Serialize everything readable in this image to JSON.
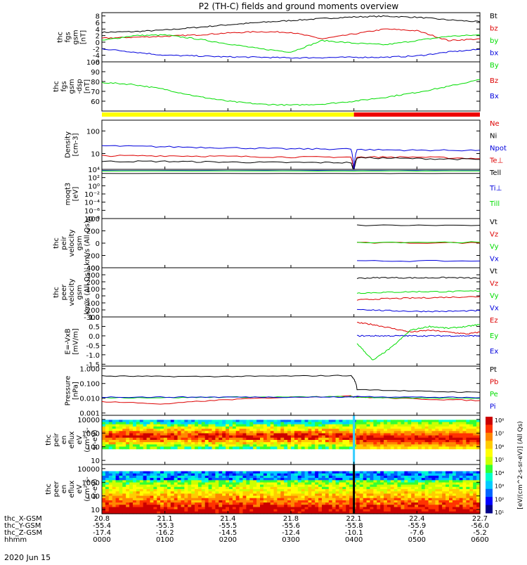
{
  "title": "P2 (TH-C) fields and ground moments overview",
  "date_label": "2020 Jun 15",
  "footer": {
    "row_labels": [
      "thc_X-GSM",
      "thc_Y-GSM",
      "thc_Z-GSM",
      "hhmm"
    ],
    "columns": [
      {
        "x": "20.8",
        "y": "-55.4",
        "z": "-17.4",
        "hhmm": "0000"
      },
      {
        "x": "21.1",
        "y": "-55.3",
        "z": "-16.2",
        "hhmm": "0100"
      },
      {
        "x": "21.4",
        "y": "-55.5",
        "z": "-14.5",
        "hhmm": "0200"
      },
      {
        "x": "21.8",
        "y": "-55.6",
        "z": "-12.4",
        "hhmm": "0300"
      },
      {
        "x": "22.1",
        "y": "-55.8",
        "z": "-10.1",
        "hhmm": "0400"
      },
      {
        "x": "22.4",
        "y": "-55.9",
        "z": "-7.6",
        "hhmm": "0500"
      },
      {
        "x": "22.7",
        "y": "-56.0",
        "z": "-5.2",
        "hhmm": "0600"
      }
    ]
  },
  "colors": {
    "black": "#000000",
    "red": "#dd0000",
    "green": "#00dd00",
    "blue": "#0000dd",
    "yellow": "#ffff00",
    "mode_red": "#ee0000"
  },
  "chart_data": [
    {
      "type": "line",
      "ylabel_lines": [
        "thc",
        "fgs",
        "gsm",
        "[nT]"
      ],
      "ylim": [
        -6,
        9
      ],
      "yticks": [
        "8",
        "6",
        "4",
        "2",
        "0",
        "-2",
        "-4",
        "-6"
      ],
      "x_hours": [
        0,
        0.5,
        1,
        1.5,
        2,
        2.5,
        3,
        3.5,
        4,
        4.5,
        5,
        5.5,
        6
      ],
      "series": [
        {
          "name": "Bt",
          "color": "#000000",
          "values": [
            3.0,
            3.2,
            3.7,
            4.5,
            5.3,
            6.0,
            6.6,
            7.2,
            7.7,
            7.9,
            7.6,
            6.8,
            6.2
          ]
        },
        {
          "name": "bz",
          "color": "#dd0000",
          "values": [
            1.2,
            1.5,
            1.8,
            2.2,
            2.8,
            3.2,
            3.0,
            1.0,
            2.5,
            4.0,
            3.5,
            0.5,
            1.0
          ]
        },
        {
          "name": "by",
          "color": "#00dd00",
          "values": [
            0.5,
            2.0,
            2.2,
            1.0,
            -0.5,
            -2.0,
            -3.0,
            0.5,
            -0.3,
            -0.8,
            0.5,
            1.8,
            2.2
          ]
        },
        {
          "name": "bx",
          "color": "#0000dd",
          "values": [
            -2.0,
            -3.0,
            -4.0,
            -4.2,
            -4.5,
            -4.6,
            -4.8,
            -4.7,
            -4.6,
            -4.6,
            -4.2,
            -3.0,
            -2.2
          ]
        }
      ]
    },
    {
      "type": "line",
      "ylabel_lines": [
        "thc",
        "fgs",
        "gsm",
        "-dsp",
        "[nT]"
      ],
      "ylim": [
        50,
        100
      ],
      "yticks": [
        "100",
        "90",
        "80",
        "70",
        "60"
      ],
      "x_hours": [
        0,
        0.5,
        1,
        1.5,
        2,
        2.5,
        3,
        3.5,
        4,
        4.5,
        5,
        5.5,
        6
      ],
      "series": [
        {
          "name": "By",
          "color": "#00dd00",
          "values": [
            79,
            77,
            72,
            65,
            60,
            57,
            56,
            57,
            60,
            64,
            69,
            75,
            82
          ]
        }
      ],
      "legend_extra": [
        {
          "name": "Bz",
          "color": "#dd0000"
        },
        {
          "name": "Bx",
          "color": "#0000dd"
        }
      ]
    },
    {
      "type": "line",
      "ylabel_lines": [
        "Density",
        "[cm-3]"
      ],
      "yscale": "log",
      "ylim": [
        2,
        300
      ],
      "yticks": [
        "100",
        "10"
      ],
      "x_hours": [
        0,
        1,
        2,
        3,
        3.95,
        4.0,
        4.05,
        5,
        6
      ],
      "series": [
        {
          "name": "Ne",
          "color": "#dd0000",
          "values": [
            8,
            8,
            7.5,
            7,
            7,
            1.5,
            7,
            7,
            6
          ]
        },
        {
          "name": "Ni",
          "color": "#000000",
          "values": [
            4.5,
            4.5,
            4.2,
            4,
            4,
            1.5,
            6.5,
            6,
            5.5
          ]
        },
        {
          "name": "Npot",
          "color": "#0000dd",
          "values": [
            22,
            20,
            18,
            16,
            16,
            1.5,
            15,
            14,
            14
          ]
        },
        {
          "name": "Te⊥",
          "color": "#dd0000",
          "values": []
        }
      ]
    },
    {
      "type": "line",
      "ylabel_lines": [
        "moqt3",
        "[eV]"
      ],
      "yscale": "log",
      "ylim": [
        1e-08,
        10000.0
      ],
      "yticks": [
        "10⁴",
        "10²",
        "10⁰",
        "10⁻²",
        "10⁻⁴",
        "10⁻⁶",
        "10⁻⁸"
      ],
      "x_hours": [
        0,
        4,
        6
      ],
      "series": [
        {
          "name": "Tell",
          "color": "#000000",
          "values": [
            1000,
            1000,
            1000
          ]
        },
        {
          "name": "Ti⊥",
          "color": "#0000dd",
          "values": [
            5000,
            5000,
            5000
          ]
        },
        {
          "name": "Till",
          "color": "#00dd00",
          "values": [
            4000,
            4000,
            4000
          ]
        }
      ]
    },
    {
      "type": "line",
      "ylabel_lines": [
        "thc",
        "peir",
        "velocity",
        "gsm",
        "km/s (All Qs)"
      ],
      "ylim": [
        -400,
        400
      ],
      "yticks": [
        "400",
        "200",
        "0",
        "-200",
        "-400"
      ],
      "x_hours": [
        4.05,
        6
      ],
      "series": [
        {
          "name": "Vt",
          "color": "#000000",
          "values": [
            290,
            290
          ]
        },
        {
          "name": "Vz",
          "color": "#dd0000",
          "values": [
            5,
            5
          ]
        },
        {
          "name": "Vy",
          "color": "#00dd00",
          "values": [
            15,
            15
          ]
        },
        {
          "name": "Vx",
          "color": "#0000dd",
          "values": [
            -290,
            -290
          ]
        }
      ]
    },
    {
      "type": "line",
      "ylabel_lines": [
        "thc",
        "peer",
        "velocity",
        "gsm",
        "km/s (All Qs)"
      ],
      "ylim": [
        -300,
        400
      ],
      "yticks": [
        "400",
        "300",
        "200",
        "100",
        "0",
        "-100",
        "-200",
        "-300"
      ],
      "x_hours": [
        4.05,
        4.5,
        5,
        5.5,
        6
      ],
      "series": [
        {
          "name": "Vt",
          "color": "#000000",
          "values": [
            250,
            260,
            255,
            260,
            250
          ]
        },
        {
          "name": "Vz",
          "color": "#dd0000",
          "values": [
            -60,
            -40,
            -30,
            -20,
            -10
          ]
        },
        {
          "name": "Vy",
          "color": "#00dd00",
          "values": [
            40,
            50,
            60,
            60,
            70
          ]
        },
        {
          "name": "Vx",
          "color": "#0000dd",
          "values": [
            -190,
            -210,
            -220,
            -220,
            -210
          ]
        }
      ]
    },
    {
      "type": "line",
      "ylabel_lines": [
        "E=-VxB",
        "[mV/m]"
      ],
      "ylim": [
        -1.6,
        1.0
      ],
      "yticks": [
        "1.0",
        "0.5",
        "0.0",
        "-0.5",
        "-1.0",
        "-1.5"
      ],
      "x_hours": [
        4.05,
        4.3,
        4.6,
        4.9,
        5.2,
        5.5,
        5.8,
        6
      ],
      "series": [
        {
          "name": "Ez",
          "color": "#dd0000",
          "values": [
            0.7,
            0.6,
            0.4,
            0.2,
            0.3,
            0.2,
            0.1,
            0.2
          ]
        },
        {
          "name": "Ey",
          "color": "#00dd00",
          "values": [
            -0.4,
            -1.3,
            -0.6,
            0.3,
            0.5,
            0.4,
            0.5,
            0.6
          ]
        },
        {
          "name": "Ex",
          "color": "#0000dd",
          "values": [
            0.0,
            0.0,
            0.0,
            0.0,
            0.0,
            0.0,
            0.0,
            0.0
          ]
        }
      ]
    },
    {
      "type": "line",
      "ylabel_lines": [
        "Pressure",
        "[nPa]"
      ],
      "yscale": "log",
      "ylim": [
        0.0007,
        1.5
      ],
      "yticks": [
        "1.000",
        "0.100",
        "0.010",
        "0.001"
      ],
      "x_hours": [
        0,
        1,
        2,
        3,
        3.95,
        4.05,
        5,
        6
      ],
      "series": [
        {
          "name": "Pt",
          "color": "#000000",
          "values": [
            0.32,
            0.3,
            0.3,
            0.32,
            0.35,
            0.04,
            0.03,
            0.025
          ]
        },
        {
          "name": "Pb",
          "color": "#dd0000",
          "values": [
            0.006,
            0.004,
            0.008,
            0.012,
            0.014,
            0.012,
            0.009,
            0.007
          ]
        },
        {
          "name": "Pe",
          "color": "#00dd00",
          "values": [
            0.011,
            0.011,
            0.012,
            0.012,
            0.013,
            0.012,
            0.01,
            0.01
          ]
        },
        {
          "name": "Pi",
          "color": "#0000dd",
          "values": [
            0.012,
            0.012,
            0.012,
            0.012,
            0.012,
            0.013,
            0.012,
            0.011
          ]
        }
      ]
    },
    {
      "type": "heatmap",
      "ylabel_lines": [
        "thc",
        "peir",
        "en",
        "eflux",
        "eV",
        "(cm²-s-",
        "sr-eV)"
      ],
      "yscale": "log",
      "ylim": [
        5,
        20000
      ],
      "yticks": [
        "10000",
        "1000",
        "100",
        "10"
      ]
    },
    {
      "type": "heatmap",
      "ylabel_lines": [
        "thc",
        "peer",
        "en",
        "eflux",
        "eV",
        "(cm²-s-",
        "sr-eV)"
      ],
      "yscale": "log",
      "ylim": [
        5,
        20000
      ],
      "yticks": [
        "10000",
        "1000",
        "100",
        "10"
      ]
    }
  ],
  "colorbar": {
    "label": "[eV/(cm^2-s-sr-eV)] (All Qs)",
    "ticks": [
      "10⁸",
      "10⁷",
      "10⁶",
      "10⁵",
      "10⁴",
      "10³",
      "10²",
      "10¹"
    ]
  }
}
